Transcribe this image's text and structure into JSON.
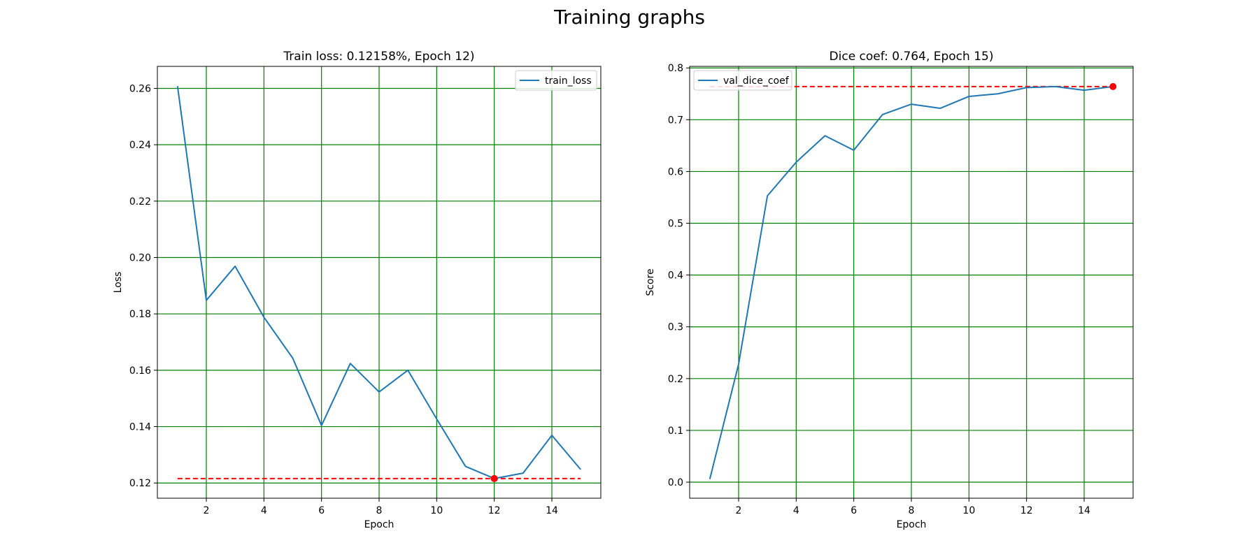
{
  "figure": {
    "title": "Training graphs"
  },
  "chart_data": [
    {
      "type": "line",
      "title": "Train loss: 0.12158%, Epoch 12)",
      "xlabel": "Epoch",
      "ylabel": "Loss",
      "xlim": [
        0.3,
        15.7
      ],
      "ylim": [
        0.1146,
        0.2678
      ],
      "xticks": [
        2,
        4,
        6,
        8,
        10,
        12,
        14
      ],
      "yticks": [
        0.12,
        0.14,
        0.16,
        0.18,
        0.2,
        0.22,
        0.24,
        0.26
      ],
      "ytick_labels": [
        "0.12",
        "0.14",
        "0.16",
        "0.18",
        "0.20",
        "0.22",
        "0.24",
        "0.26"
      ],
      "grid": true,
      "grid_color": "#008000",
      "legend_position": "upper right",
      "series": [
        {
          "name": "train_loss",
          "color": "#1f77b4",
          "x": [
            1,
            2,
            3,
            4,
            5,
            6,
            7,
            8,
            9,
            10,
            11,
            12,
            13,
            14,
            15
          ],
          "values": [
            0.2608,
            0.1848,
            0.1969,
            0.1788,
            0.1643,
            0.1404,
            0.1624,
            0.1523,
            0.16,
            0.1427,
            0.1259,
            0.12158,
            0.1235,
            0.1369,
            0.1248
          ]
        }
      ],
      "best_line": {
        "value": 0.12158,
        "x_range": [
          1,
          15
        ],
        "color": "#ff0000"
      },
      "best_point": {
        "x": 12,
        "value": 0.12158,
        "color": "#ff0000"
      }
    },
    {
      "type": "line",
      "title": "Dice coef: 0.764, Epoch 15)",
      "xlabel": "Epoch",
      "ylabel": "Score",
      "xlim": [
        0.3,
        15.7
      ],
      "ylim": [
        -0.031,
        0.803
      ],
      "xticks": [
        2,
        4,
        6,
        8,
        10,
        12,
        14
      ],
      "yticks": [
        0.0,
        0.1,
        0.2,
        0.3,
        0.4,
        0.5,
        0.6,
        0.7,
        0.8
      ],
      "ytick_labels": [
        "0.0",
        "0.1",
        "0.2",
        "0.3",
        "0.4",
        "0.5",
        "0.6",
        "0.7",
        "0.8"
      ],
      "grid": true,
      "grid_color": "#008000",
      "legend_position": "upper left",
      "series": [
        {
          "name": "val_dice_coef",
          "color": "#1f77b4",
          "x": [
            1,
            2,
            3,
            4,
            5,
            6,
            7,
            8,
            9,
            10,
            11,
            12,
            13,
            14,
            15
          ],
          "values": [
            0.006,
            0.228,
            0.553,
            0.618,
            0.669,
            0.641,
            0.71,
            0.73,
            0.722,
            0.745,
            0.75,
            0.762,
            0.764,
            0.757,
            0.764
          ]
        }
      ],
      "best_line": {
        "value": 0.764,
        "x_range": [
          1,
          15
        ],
        "color": "#ff0000"
      },
      "best_point": {
        "x": 15,
        "value": 0.764,
        "color": "#ff0000"
      }
    }
  ]
}
